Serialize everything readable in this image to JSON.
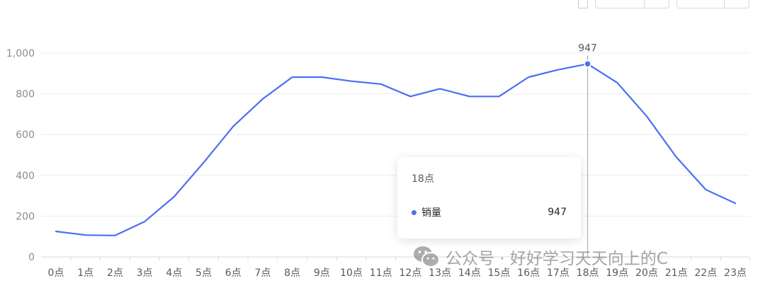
{
  "top_controls": {
    "checkbox_icon": "square-icon"
  },
  "tooltip": {
    "title": "18点",
    "series_name": "销量",
    "value": "947",
    "dot_color": "#4c6ef5"
  },
  "watermark": {
    "text": "公众号 · 好好学习天天向上的C",
    "icon": "wechat-icon"
  },
  "chart_data": {
    "type": "line",
    "categories": [
      "0点",
      "1点",
      "2点",
      "3点",
      "4点",
      "5点",
      "6点",
      "7点",
      "8点",
      "9点",
      "10点",
      "11点",
      "12点",
      "13点",
      "14点",
      "15点",
      "16点",
      "17点",
      "18点",
      "19点",
      "20点",
      "21点",
      "22点",
      "23点"
    ],
    "series": [
      {
        "name": "销量",
        "values": [
          125,
          107,
          105,
          173,
          295,
          463,
          640,
          775,
          882,
          882,
          862,
          848,
          787,
          825,
          787,
          787,
          882,
          918,
          947,
          855,
          690,
          490,
          330,
          263
        ],
        "color": "#4c6ef5"
      }
    ],
    "y_ticks": [
      "0",
      "200",
      "400",
      "600",
      "800",
      "1,000"
    ],
    "ylim": [
      0,
      1000
    ],
    "grid": true,
    "highlight": {
      "index": 18,
      "label": "947"
    }
  }
}
